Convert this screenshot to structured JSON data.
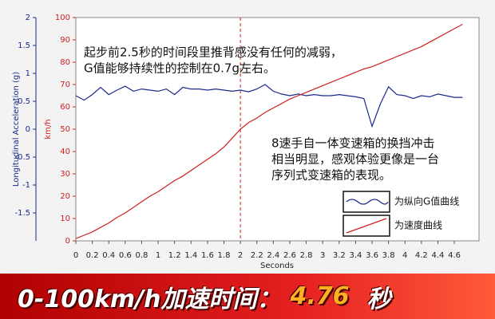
{
  "chart_data": {
    "type": "line",
    "ylabel": "Longitudinal Acceleration (g)",
    "y2label": "km/h",
    "xlabel": "Seconds",
    "x": [
      0,
      0.1,
      0.2,
      0.3,
      0.4,
      0.5,
      0.6,
      0.7,
      0.8,
      0.9,
      1,
      1.1,
      1.2,
      1.3,
      1.4,
      1.5,
      1.6,
      1.7,
      1.8,
      1.9,
      2,
      2.1,
      2.2,
      2.3,
      2.4,
      2.5,
      2.6,
      2.7,
      2.8,
      2.9,
      3,
      3.1,
      3.2,
      3.3,
      3.4,
      3.5,
      3.6,
      3.7,
      3.8,
      3.9,
      4,
      4.1,
      4.2,
      4.3,
      4.4,
      4.5,
      4.6,
      4.7
    ],
    "series": [
      {
        "name": "为纵向G值曲线",
        "color": "#1a2a8c",
        "values": [
          0.6,
          0.52,
          0.62,
          0.75,
          0.62,
          0.7,
          0.77,
          0.68,
          0.72,
          0.7,
          0.68,
          0.72,
          0.62,
          0.75,
          0.72,
          0.72,
          0.7,
          0.72,
          0.7,
          0.68,
          0.7,
          0.67,
          0.72,
          0.8,
          0.68,
          0.63,
          0.6,
          0.63,
          0.6,
          0.62,
          0.6,
          0.6,
          0.62,
          0.6,
          0.58,
          0.55,
          0.05,
          0.45,
          0.76,
          0.62,
          0.6,
          0.55,
          0.6,
          0.58,
          0.63,
          0.6,
          0.57,
          0.57
        ]
      },
      {
        "name": "为速度曲线",
        "color": "#cc2020",
        "axis": "y2",
        "values": [
          1,
          2.5,
          4,
          6,
          8,
          10.5,
          12.5,
          15,
          17.5,
          20,
          22,
          24.5,
          27,
          29,
          31.5,
          34,
          36.5,
          39,
          42,
          46,
          50,
          53,
          55,
          57.5,
          59.5,
          61.5,
          63.5,
          65,
          66.5,
          68,
          69.5,
          71,
          72.5,
          74,
          75.5,
          77,
          78,
          79.5,
          81,
          82.5,
          84,
          85.5,
          87,
          89,
          91,
          93,
          95,
          97
        ]
      }
    ],
    "xlim": [
      0,
      4.9
    ],
    "xticks": [
      0,
      0.2,
      0.4,
      0.6,
      0.8,
      1,
      1.2,
      1.4,
      1.6,
      1.8,
      2,
      2.2,
      2.4,
      2.6,
      2.8,
      3,
      3.2,
      3.4,
      3.6,
      3.8,
      4,
      4.2,
      4.4,
      4.6
    ],
    "ylim": [
      -2,
      2
    ],
    "yticks": [
      -1.5,
      -1,
      -0.5,
      0,
      0.5,
      1,
      1.5,
      2
    ],
    "y2lim": [
      0,
      100
    ],
    "y2ticks": [
      0,
      10,
      20,
      30,
      40,
      50,
      60,
      70,
      80,
      90,
      100
    ],
    "vline": 2,
    "vline_color": "#cc2020",
    "legend": "lower right",
    "annotations": [
      {
        "lines": [
          "起步前2.5秒的时间段里推背感没有任何的减弱，",
          "G值能够持续性的控制在0.7g左右。"
        ]
      },
      {
        "lines": [
          "8速手自一体变速箱的换挡冲击",
          "相当明显，感观体验更像是一台",
          "序列式变速箱的表现。"
        ]
      }
    ]
  },
  "banner": {
    "label": "0-100km/h加速时间：",
    "value": "4.76",
    "unit": "秒"
  }
}
